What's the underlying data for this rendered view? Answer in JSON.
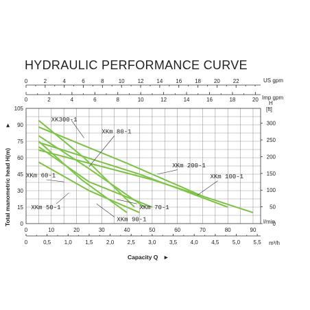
{
  "colors": {
    "curve": "#8fd05a",
    "curve_edge": "#5aa02a",
    "grid": "#9a9a9a",
    "text": "#222222"
  },
  "chart_data": {
    "type": "line",
    "title": "HYDRAULIC PERFORMANCE CURVE",
    "xlabel": "Capacity Q",
    "ylabel": "Total manometric head H(m)",
    "grid": true,
    "x_m3h": {
      "ticks": [
        "0",
        "0,5",
        "1,0",
        "1,5",
        "2,0",
        "2,5",
        "3,0",
        "3,5",
        "4,0",
        "4,5",
        "5,0",
        "5,5"
      ],
      "unit": "m³/h",
      "range": [
        0,
        5.5
      ]
    },
    "x_lmin": {
      "ticks": [
        "0",
        "10",
        "20",
        "30",
        "40",
        "50",
        "60",
        "70",
        "80",
        "90"
      ],
      "unit": "l/min",
      "range": [
        0,
        93
      ]
    },
    "x_usgpm": {
      "ticks": [
        "0",
        "2",
        "4",
        "6",
        "8",
        "10",
        "12",
        "14",
        "16",
        "18",
        "20",
        "22"
      ],
      "unit": "US gpm"
    },
    "x_impgpm": {
      "ticks": [
        "0",
        "2",
        "4",
        "6",
        "8",
        "10",
        "12",
        "14",
        "16",
        "18",
        "20"
      ],
      "unit": "Imp gpm"
    },
    "y_m": {
      "ticks": [
        "0",
        "15",
        "30",
        "45",
        "60",
        "75",
        "90",
        "105"
      ],
      "range": [
        0,
        105
      ]
    },
    "y_ft": {
      "ticks": [
        "0",
        "50",
        "100",
        "150",
        "200",
        "250",
        "300"
      ],
      "unit": "H\n[ft]"
    },
    "series": [
      {
        "name": "XK300-1",
        "x_lmin": [
          5,
          23,
          43
        ],
        "y_m": [
          94,
          60,
          15
        ]
      },
      {
        "name": "XKm 80-1",
        "x_lmin": [
          5,
          40,
          70
        ],
        "y_m": [
          88,
          55,
          25
        ]
      },
      {
        "name": "XKm 90-1",
        "x_lmin": [
          5,
          25,
          47
        ],
        "y_m": [
          80,
          50,
          15
        ]
      },
      {
        "name": "XKm 100-1",
        "x_lmin": [
          5,
          45,
          80
        ],
        "y_m": [
          74,
          45,
          15
        ]
      },
      {
        "name": "XKm 200-1",
        "x_lmin": [
          5,
          50,
          90
        ],
        "y_m": [
          67,
          40,
          10
        ]
      },
      {
        "name": "XKm 60-1",
        "x_lmin": [
          5,
          22,
          40
        ],
        "y_m": [
          75,
          40,
          10
        ]
      },
      {
        "name": "XKm 70-1",
        "x_lmin": [
          5,
          25,
          50
        ],
        "y_m": [
          70,
          38,
          15
        ]
      },
      {
        "name": "XKm 50-1",
        "x_lmin": [
          5,
          25,
          45
        ],
        "y_m": [
          56,
          30,
          10
        ]
      }
    ],
    "annotations": [
      {
        "text": "XK300-1"
      },
      {
        "text": "XKm 80-1"
      },
      {
        "text": "XKm 200-1"
      },
      {
        "text": "XKm 100-1"
      },
      {
        "text": "XKm 60-1"
      },
      {
        "text": "XKm 50-1"
      },
      {
        "text": "XKm 70-1"
      },
      {
        "text": "XKm 90-1"
      }
    ]
  }
}
